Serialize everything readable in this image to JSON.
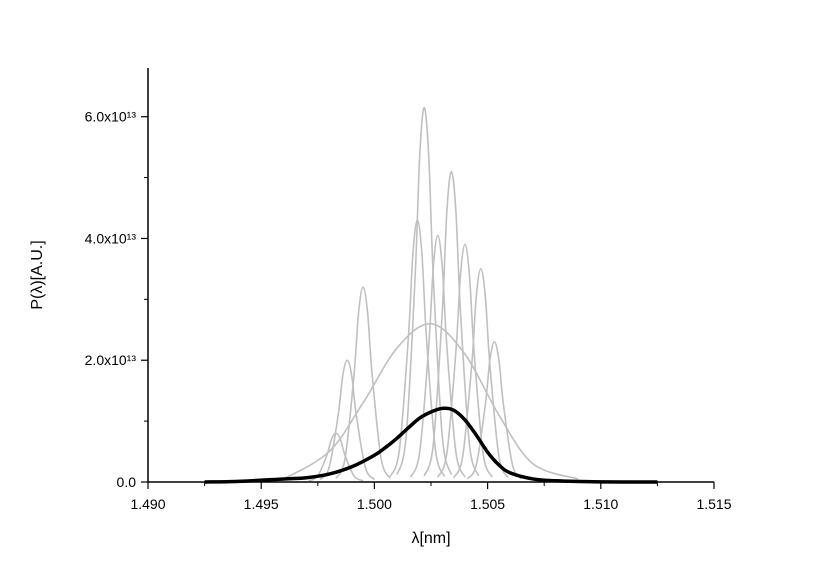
{
  "chart_data": {
    "type": "line",
    "xlabel": "λ[nm]",
    "ylabel": "P(λ)[A.U.]",
    "xlim": [
      1.49,
      1.515
    ],
    "xticks": [
      {
        "value": 1.49,
        "label": "1.490"
      },
      {
        "value": 1.495,
        "label": "1.495"
      },
      {
        "value": 1.5,
        "label": "1.500"
      },
      {
        "value": 1.505,
        "label": "1.505"
      },
      {
        "value": 1.51,
        "label": "1.510"
      },
      {
        "value": 1.515,
        "label": "1.515"
      }
    ],
    "xminorticks": [
      1.4925,
      1.4975,
      1.5025,
      1.5075,
      1.5125
    ],
    "ylim": [
      0,
      68000000000000.0
    ],
    "yticks": [
      {
        "value": 0,
        "label": "0.0"
      },
      {
        "value": 20000000000000.0,
        "label": "2.0x10¹³"
      },
      {
        "value": 40000000000000.0,
        "label": "4.0x10¹³"
      },
      {
        "value": 60000000000000.0,
        "label": "6.0x10¹³"
      }
    ],
    "yminorticks": [
      10000000000000.0,
      30000000000000.0,
      50000000000000.0
    ],
    "series": [
      {
        "color": "#c0c0c0",
        "x": [
          1.496,
          1.498,
          1.4995,
          1.501,
          1.5025,
          1.504,
          1.5055,
          1.507,
          1.509
        ],
        "values": [
          500000000000.0,
          5000000000000.0,
          13000000000000.0,
          22000000000000.0,
          26000000000000.0,
          21000000000000.0,
          11000000000000.0,
          3000000000000.0,
          500000000000.0
        ]
      },
      {
        "color": "#c0c0c0",
        "x": [
          1.501,
          1.5014,
          1.5018,
          1.502,
          1.5022,
          1.5024,
          1.5026,
          1.503,
          1.5034
        ],
        "values": [
          1200000000000.0,
          7400000000000.0,
          33800000000000.0,
          53500000000000.0,
          61500000000000.0,
          53500000000000.0,
          33800000000000.0,
          7400000000000.0,
          1200000000000.0
        ]
      },
      {
        "color": "#c0c0c0",
        "x": [
          1.5022,
          1.5026,
          1.503,
          1.5032,
          1.5034,
          1.5036,
          1.5038,
          1.5042,
          1.5046
        ],
        "values": [
          1000000000000.0,
          6100000000000.0,
          28100000000000.0,
          44400000000000.0,
          51000000000000.0,
          44400000000000.0,
          28100000000000.0,
          6100000000000.0,
          1000000000000.0
        ]
      },
      {
        "color": "#c0c0c0",
        "x": [
          1.5007,
          1.5011,
          1.5015,
          1.5017,
          1.5019,
          1.5021,
          1.5023,
          1.5027,
          1.5031
        ],
        "values": [
          900000000000.0,
          5200000000000.0,
          23700000000000.0,
          37400000000000.0,
          43000000000000.0,
          37400000000000.0,
          23700000000000.0,
          5200000000000.0,
          900000000000.0
        ]
      },
      {
        "color": "#c0c0c0",
        "x": [
          1.5016,
          1.502,
          1.5024,
          1.5026,
          1.5028,
          1.503,
          1.5032,
          1.5036,
          1.504
        ],
        "values": [
          800000000000.0,
          4900000000000.0,
          22300000000000.0,
          35200000000000.0,
          40500000000000.0,
          35200000000000.0,
          22300000000000.0,
          4900000000000.0,
          800000000000.0
        ]
      },
      {
        "color": "#c0c0c0",
        "x": [
          1.4983,
          1.4987,
          1.4991,
          1.4993,
          1.4995,
          1.4997,
          1.4999,
          1.5003,
          1.5007
        ],
        "values": [
          600000000000.0,
          3800000000000.0,
          17600000000000.0,
          27800000000000.0,
          32000000000000.0,
          27800000000000.0,
          17600000000000.0,
          3800000000000.0,
          600000000000.0
        ]
      },
      {
        "color": "#c0c0c0",
        "x": [
          1.5035,
          1.5039,
          1.5043,
          1.5045,
          1.5047,
          1.5049,
          1.5051,
          1.5055,
          1.5059
        ],
        "values": [
          700000000000.0,
          4200000000000.0,
          19300000000000.0,
          30500000000000.0,
          35000000000000.0,
          30500000000000.0,
          19300000000000.0,
          4200000000000.0,
          700000000000.0
        ]
      },
      {
        "color": "#c0c0c0",
        "x": [
          1.4976,
          1.498,
          1.4984,
          1.4986,
          1.4988,
          1.499,
          1.4992,
          1.4996,
          1.5
        ],
        "values": [
          400000000000.0,
          2400000000000.0,
          11000000000000.0,
          17400000000000.0,
          20000000000000.0,
          17400000000000.0,
          11000000000000.0,
          2400000000000.0,
          400000000000.0
        ]
      },
      {
        "color": "#c0c0c0",
        "x": [
          1.5041,
          1.5045,
          1.5049,
          1.5051,
          1.5053,
          1.5055,
          1.5057,
          1.5061,
          1.5065
        ],
        "values": [
          500000000000.0,
          2800000000000.0,
          12700000000000.0,
          20000000000000.0,
          23000000000000.0,
          20000000000000.0,
          12700000000000.0,
          2800000000000.0,
          500000000000.0
        ]
      },
      {
        "color": "#c0c0c0",
        "x": [
          1.4971,
          1.4975,
          1.4979,
          1.4981,
          1.4983,
          1.4985,
          1.4987,
          1.4991,
          1.4995
        ],
        "values": [
          200000000000.0,
          1000000000000.0,
          4400000000000.0,
          7000000000000.0,
          8000000000000.0,
          7000000000000.0,
          4400000000000.0,
          1000000000000.0,
          200000000000.0
        ]
      },
      {
        "color": "#c0c0c0",
        "x": [
          1.5028,
          1.5032,
          1.5036,
          1.5038,
          1.504,
          1.5042,
          1.5044,
          1.5048,
          1.5052
        ],
        "values": [
          800000000000.0,
          4700000000000.0,
          21500000000000.0,
          33900000000000.0,
          39000000000000.0,
          33900000000000.0,
          21500000000000.0,
          4700000000000.0,
          800000000000.0
        ]
      },
      {
        "color": "#000000",
        "x": [
          1.4925,
          1.494,
          1.496,
          1.497,
          1.498,
          1.499,
          1.5,
          1.5005,
          1.501,
          1.5015,
          1.502,
          1.5025,
          1.503,
          1.5035,
          1.504,
          1.5045,
          1.505,
          1.5055,
          1.506,
          1.507,
          1.508,
          1.51,
          1.5125
        ],
        "values": [
          0,
          100000000000.0,
          500000000000.0,
          700000000000.0,
          1300000000000.0,
          2500000000000.0,
          4400000000000.0,
          5700000000000.0,
          7200000000000.0,
          8900000000000.0,
          10500000000000.0,
          11500000000000.0,
          12100000000000.0,
          11800000000000.0,
          10200000000000.0,
          7700000000000.0,
          4900000000000.0,
          2800000000000.0,
          1500000000000.0,
          500000000000.0,
          200000000000.0,
          30000000000.0,
          0
        ]
      }
    ]
  }
}
